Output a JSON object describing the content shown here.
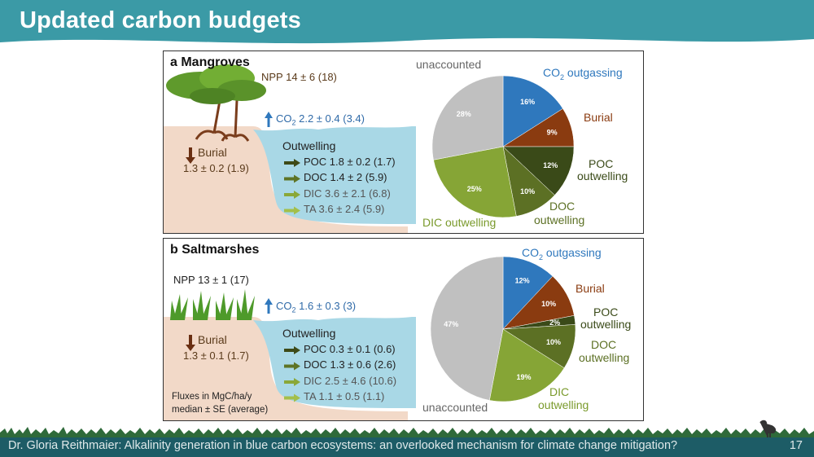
{
  "header": {
    "title": "Updated carbon budgets"
  },
  "footer": {
    "text": "Dr. Gloria Reithmaier: Alkalinity generation in blue carbon ecosystems: an overlooked mechanism for climate change mitigation?",
    "slide_number": "17"
  },
  "panels": [
    {
      "title": "a Mangroves",
      "npp": "NPP 14 ± 6 (18)",
      "co2_label": "CO",
      "co2_sub": "2",
      "co2_value": " 2.2 ± 0.4 (3.4)",
      "burial_label": "Burial",
      "burial_value": "1.3 ± 0.2 (1.9)",
      "outwelling_title": "Outwelling",
      "outwelling": [
        {
          "label": "POC 1.8 ± 0.2 (1.7)",
          "color": "#3d4a17"
        },
        {
          "label": "DOC 1.4 ± 2 (5.9)",
          "color": "#5e7425"
        },
        {
          "label": "DIC 3.6 ± 2.1 (6.8)",
          "color": "#8aa838"
        },
        {
          "label": "TA 3.6 ± 2.4 (5.9)",
          "color": "#a3bf4a"
        }
      ],
      "pie_labels": {
        "unaccounted": "unaccounted",
        "co2": "CO",
        "co2_sub": "2",
        "co2_rest": " outgassing",
        "burial": "Burial",
        "poc1": "POC",
        "poc2": "outwelling",
        "doc1": "DOC",
        "doc2": "outwelling",
        "dic": "DIC outwelling"
      }
    },
    {
      "title": "b Saltmarshes",
      "npp": "NPP 13 ± 1 (17)",
      "co2_label": "CO",
      "co2_sub": "2",
      "co2_value": " 1.6 ± 0.3 (3)",
      "burial_label": "Burial",
      "burial_value": "1.3 ± 0.1 (1.7)",
      "outwelling_title": "Outwelling",
      "outwelling": [
        {
          "label": "POC 0.3 ± 0.1 (0.6)",
          "color": "#3d4a17"
        },
        {
          "label": "DOC 1.3 ± 0.6 (2.6)",
          "color": "#5e7425"
        },
        {
          "label": "DIC 2.5 ± 4.6 (10.6)",
          "color": "#8aa838"
        },
        {
          "label": "TA 1.1 ± 0.5 (1.1)",
          "color": "#a3bf4a"
        }
      ],
      "units1": "Fluxes in MgC/ha/y",
      "units2": "median ± SE (average)",
      "pie_labels": {
        "unaccounted": "unaccounted",
        "co2": "CO",
        "co2_sub": "2",
        "co2_rest": " outgassing",
        "burial": "Burial",
        "poc1": "POC",
        "poc2": "outwelling",
        "doc1": "DOC",
        "doc2": "outwelling",
        "dic1": "DIC",
        "dic2": "outwelling"
      }
    }
  ],
  "chart_data": [
    {
      "type": "pie",
      "categories": [
        "CO2 outgassing",
        "Burial",
        "POC outwelling",
        "DOC outwelling",
        "DIC outwelling",
        "unaccounted"
      ],
      "values": [
        16,
        9,
        12,
        10,
        25,
        28
      ],
      "value_labels": [
        "16%",
        "9%",
        "12%",
        "10%",
        "25%",
        "28%"
      ],
      "colors": [
        "#2f78bd",
        "#8a3b10",
        "#3a4a18",
        "#5c7024",
        "#86a536",
        "#c0c0c0"
      ]
    },
    {
      "type": "pie",
      "categories": [
        "CO2 outgassing",
        "Burial",
        "POC outwelling",
        "DOC outwelling",
        "DIC outwelling",
        "unaccounted"
      ],
      "values": [
        12,
        10,
        2,
        10,
        19,
        47
      ],
      "value_labels": [
        "12%",
        "10%",
        "2%",
        "10%",
        "19%",
        "47%"
      ],
      "colors": [
        "#2f78bd",
        "#8a3b10",
        "#3a4a18",
        "#5c7024",
        "#86a536",
        "#c0c0c0"
      ]
    }
  ]
}
